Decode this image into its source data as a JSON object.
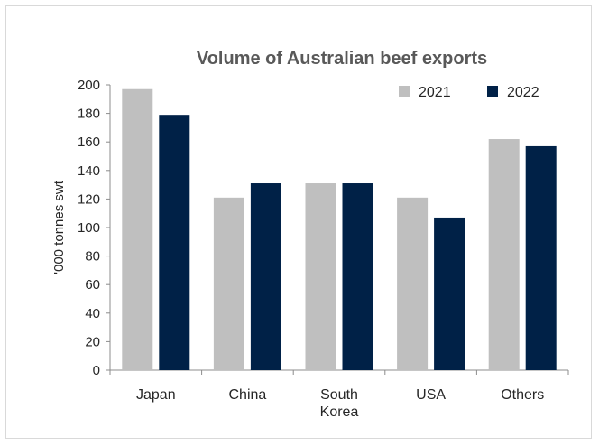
{
  "chart_data": {
    "type": "bar",
    "title": "Volume of Australian beef exports",
    "ylabel": "'000 tonnes swt",
    "xlabel": "",
    "categories": [
      [
        "Japan"
      ],
      [
        "China"
      ],
      [
        "South",
        "Korea"
      ],
      [
        "USA"
      ],
      [
        "Others"
      ]
    ],
    "series": [
      {
        "name": "2021",
        "color": "#bfbfbf",
        "values": [
          197,
          121,
          131,
          121,
          162
        ]
      },
      {
        "name": "2022",
        "color": "#002147",
        "values": [
          179,
          131,
          131,
          107,
          157
        ]
      }
    ],
    "ylim": [
      0,
      200
    ],
    "yticks": [
      0,
      20,
      40,
      60,
      80,
      100,
      120,
      140,
      160,
      180,
      200
    ],
    "grid": false,
    "legend_position": "top-right"
  }
}
